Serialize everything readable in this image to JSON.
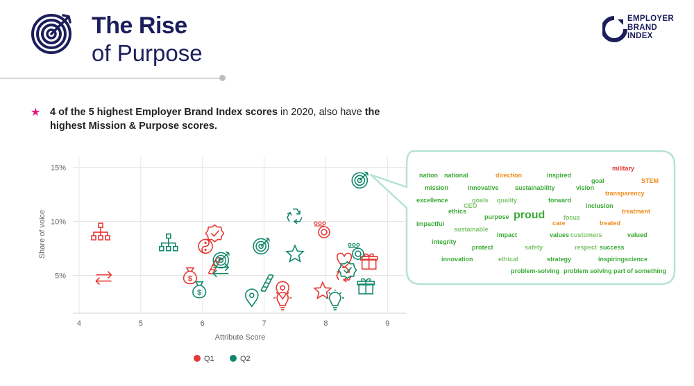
{
  "header": {
    "title_bold": "The Rise",
    "title_light": "of Purpose",
    "icon": "target-bullseye-icon"
  },
  "brand": {
    "line1": "EMPLOYER",
    "line2": "BRAND",
    "line3": "INDEX",
    "icon": "brand-ring-icon"
  },
  "statement": {
    "bullet_icon": "star-icon",
    "part1_bold": "4 of the 5 highest Employer Brand Index scores",
    "part2": " in 2020, also have ",
    "part3_bold": "the highest Mission & Purpose scores."
  },
  "colors": {
    "navy": "#1c1e5c",
    "q1": "#e53935",
    "q2": "#13876a",
    "accent_pink": "#e0187a",
    "word_green": "#3aaa35",
    "word_light_green": "#7cc46b",
    "word_orange": "#f08c1e",
    "bubble_border": "#b6e3d3"
  },
  "chart_data": {
    "type": "scatter",
    "xlabel": "Attribute Score",
    "ylabel": "Share of voice",
    "xlim": [
      3.9,
      9.3
    ],
    "ylim": [
      1.5,
      16
    ],
    "x_ticks": [
      4,
      5,
      6,
      7,
      8,
      9
    ],
    "y_ticks": [
      5,
      10,
      15
    ],
    "y_tick_labels": [
      "5%",
      "10%",
      "15%"
    ],
    "grid": true,
    "legend": {
      "position": "bottom-center",
      "entries": [
        "Q1",
        "Q2"
      ]
    },
    "series": [
      {
        "name": "Q1",
        "points": [
          {
            "x": 4.35,
            "y": 9.0,
            "icon": "hierarchy-icon"
          },
          {
            "x": 4.4,
            "y": 4.8,
            "icon": "exchange-arrows-icon"
          },
          {
            "x": 5.8,
            "y": 5.0,
            "icon": "money-bag-icon"
          },
          {
            "x": 6.05,
            "y": 7.7,
            "icon": "yin-yang-icon"
          },
          {
            "x": 6.2,
            "y": 8.9,
            "icon": "badge-check-icon"
          },
          {
            "x": 6.2,
            "y": 5.9,
            "icon": "ladder-icon"
          },
          {
            "x": 7.3,
            "y": 3.6,
            "icon": "location-pin-icon"
          },
          {
            "x": 7.3,
            "y": 2.6,
            "icon": "lightbulb-icon"
          },
          {
            "x": 7.95,
            "y": 9.2,
            "icon": "people-target-icon"
          },
          {
            "x": 7.95,
            "y": 3.6,
            "icon": "star-icon"
          },
          {
            "x": 8.3,
            "y": 6.4,
            "icon": "heart-icon"
          },
          {
            "x": 8.3,
            "y": 5.1,
            "icon": "recycle-icon"
          },
          {
            "x": 8.7,
            "y": 6.3,
            "icon": "gift-icon"
          }
        ]
      },
      {
        "name": "Q2",
        "points": [
          {
            "x": 5.45,
            "y": 8.0,
            "icon": "hierarchy-icon"
          },
          {
            "x": 5.95,
            "y": 3.7,
            "icon": "money-bag-icon"
          },
          {
            "x": 6.3,
            "y": 6.4,
            "icon": "target-bullseye-icon"
          },
          {
            "x": 6.3,
            "y": 5.5,
            "icon": "exchange-arrows-icon"
          },
          {
            "x": 6.8,
            "y": 2.9,
            "icon": "location-pin-icon"
          },
          {
            "x": 6.95,
            "y": 7.7,
            "icon": "target-bullseye-icon"
          },
          {
            "x": 7.05,
            "y": 4.3,
            "icon": "ladder-icon"
          },
          {
            "x": 7.5,
            "y": 10.5,
            "icon": "recycle-icon"
          },
          {
            "x": 7.5,
            "y": 7.0,
            "icon": "star-icon"
          },
          {
            "x": 8.15,
            "y": 2.6,
            "icon": "lightbulb-icon"
          },
          {
            "x": 8.35,
            "y": 5.5,
            "icon": "badge-check-icon"
          },
          {
            "x": 8.5,
            "y": 7.2,
            "icon": "people-target-icon"
          },
          {
            "x": 8.65,
            "y": 4.0,
            "icon": "gift-icon"
          },
          {
            "x": 8.55,
            "y": 13.8,
            "icon": "target-bullseye-icon"
          }
        ]
      }
    ],
    "callout_point": {
      "x": 8.55,
      "y": 13.8
    }
  },
  "word_cloud": {
    "words": [
      {
        "text": "nation",
        "tone": "green"
      },
      {
        "text": "national",
        "tone": "green"
      },
      {
        "text": "direction",
        "tone": "orange"
      },
      {
        "text": "inspired",
        "tone": "green"
      },
      {
        "text": "military",
        "tone": "red"
      },
      {
        "text": "goal",
        "tone": "green"
      },
      {
        "text": "STEM",
        "tone": "orange"
      },
      {
        "text": "mission",
        "tone": "green"
      },
      {
        "text": "innovative",
        "tone": "green"
      },
      {
        "text": "sustainability",
        "tone": "green"
      },
      {
        "text": "vision",
        "tone": "green"
      },
      {
        "text": "transparency",
        "tone": "orange"
      },
      {
        "text": "excellence",
        "tone": "green"
      },
      {
        "text": "goals",
        "tone": "light"
      },
      {
        "text": "quality",
        "tone": "light"
      },
      {
        "text": "forward",
        "tone": "green"
      },
      {
        "text": "CEO",
        "tone": "light"
      },
      {
        "text": "inclusion",
        "tone": "green"
      },
      {
        "text": "ethics",
        "tone": "green"
      },
      {
        "text": "treatment",
        "tone": "orange"
      },
      {
        "text": "purpose",
        "tone": "green"
      },
      {
        "text": "proud",
        "tone": "green"
      },
      {
        "text": "focus",
        "tone": "light"
      },
      {
        "text": "impactful",
        "tone": "green"
      },
      {
        "text": "care",
        "tone": "orange"
      },
      {
        "text": "treated",
        "tone": "orange"
      },
      {
        "text": "sustainable",
        "tone": "light"
      },
      {
        "text": "impact",
        "tone": "green"
      },
      {
        "text": "values",
        "tone": "green"
      },
      {
        "text": "customers",
        "tone": "light"
      },
      {
        "text": "valued",
        "tone": "green"
      },
      {
        "text": "integrity",
        "tone": "green"
      },
      {
        "text": "protect",
        "tone": "green"
      },
      {
        "text": "safety",
        "tone": "light"
      },
      {
        "text": "respect",
        "tone": "light"
      },
      {
        "text": "success",
        "tone": "green"
      },
      {
        "text": "innovation",
        "tone": "green"
      },
      {
        "text": "ethical",
        "tone": "light"
      },
      {
        "text": "strategy",
        "tone": "green"
      },
      {
        "text": "inspiring",
        "tone": "green"
      },
      {
        "text": "science",
        "tone": "green"
      },
      {
        "text": "problem-solving",
        "tone": "green"
      },
      {
        "text": "problem solving",
        "tone": "green"
      },
      {
        "text": "part of something",
        "tone": "green"
      }
    ]
  }
}
